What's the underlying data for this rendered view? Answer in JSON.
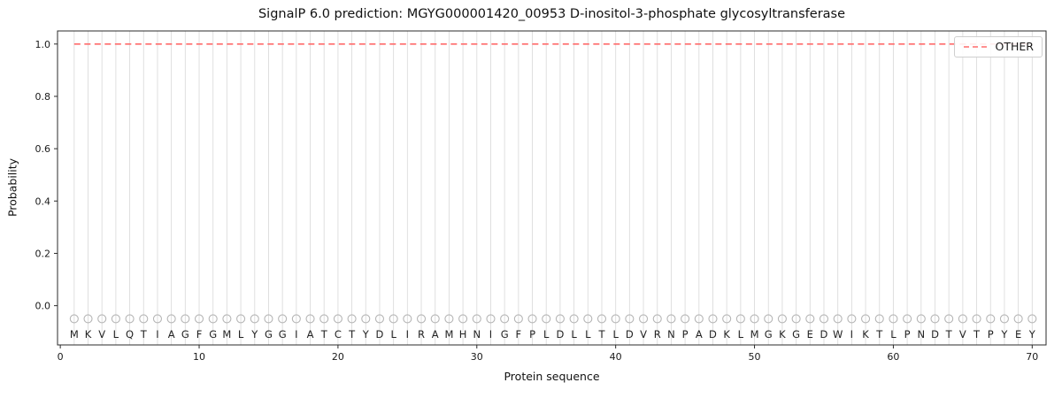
{
  "chart_data": {
    "type": "line",
    "title": "SignalP 6.0 prediction: MGYG000001420_00953 D-inositol-3-phosphate glycosyltransferase",
    "xlabel": "Protein sequence",
    "ylabel": "Probability",
    "xlim": [
      -0.2,
      71
    ],
    "ylim": [
      -0.15,
      1.05
    ],
    "x_ticks": [
      0,
      10,
      20,
      30,
      40,
      50,
      60,
      70
    ],
    "y_ticks": [
      0.0,
      0.2,
      0.4,
      0.6,
      0.8,
      1.0
    ],
    "grid": "vertical gridline at every residue position",
    "grid_color": "#dcdcdc",
    "legend_position": "upper right",
    "series": [
      {
        "name": "OTHER",
        "style": "dashed",
        "color": "#ff6b6b",
        "x_range": [
          1,
          70
        ],
        "value": 1.0
      }
    ],
    "sequence_markers": {
      "shape": "open-circle",
      "y": -0.05,
      "color": "#b5b5b5"
    },
    "sequence": [
      "M",
      "K",
      "V",
      "L",
      "Q",
      "T",
      "I",
      "A",
      "G",
      "F",
      "G",
      "M",
      "L",
      "Y",
      "G",
      "G",
      "I",
      "A",
      "T",
      "C",
      "T",
      "Y",
      "D",
      "L",
      "I",
      "R",
      "A",
      "M",
      "H",
      "N",
      "I",
      "G",
      "F",
      "P",
      "L",
      "D",
      "L",
      "L",
      "T",
      "L",
      "D",
      "V",
      "R",
      "N",
      "P",
      "A",
      "D",
      "K",
      "L",
      "M",
      "G",
      "K",
      "G",
      "E",
      "D",
      "W",
      "I",
      "K",
      "T",
      "L",
      "P",
      "N",
      "D",
      "T",
      "V",
      "T",
      "P",
      "Y",
      "E",
      "Y"
    ]
  }
}
